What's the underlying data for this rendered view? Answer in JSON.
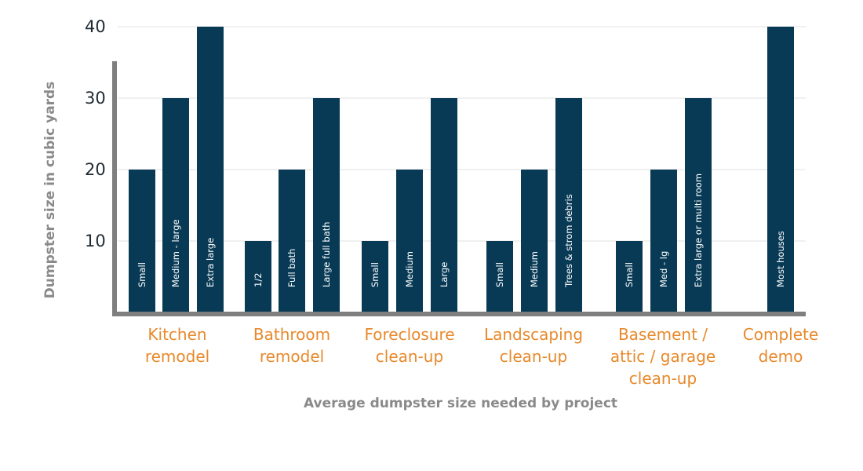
{
  "chart_data": {
    "type": "bar",
    "title": "",
    "xlabel": "Average dumpster size needed by project",
    "ylabel": "Dumpster size in cubic yards",
    "yticks": [
      10,
      20,
      30,
      40
    ],
    "ylim": [
      0,
      45
    ],
    "grid": true,
    "colors": {
      "bar": "#083a56",
      "axis": "#7f7f7f",
      "grid": "#e2e2e2",
      "category": "#e8892b"
    },
    "groups": [
      {
        "category": [
          "Kitchen",
          "remodel"
        ],
        "bars": [
          {
            "label": "Small",
            "value": 20
          },
          {
            "label": "Medium - large",
            "value": 30
          },
          {
            "label": "Extra large",
            "value": 40
          }
        ]
      },
      {
        "category": [
          "Bathroom",
          "remodel"
        ],
        "bars": [
          {
            "label": "1/2",
            "value": 10
          },
          {
            "label": "Full bath",
            "value": 20
          },
          {
            "label": "Large full bath",
            "value": 30
          }
        ]
      },
      {
        "category": [
          "Foreclosure",
          "clean-up"
        ],
        "bars": [
          {
            "label": "Small",
            "value": 10
          },
          {
            "label": "Medium",
            "value": 20
          },
          {
            "label": "Large",
            "value": 30
          }
        ]
      },
      {
        "category": [
          "Landscaping",
          "clean-up"
        ],
        "bars": [
          {
            "label": "Small",
            "value": 10
          },
          {
            "label": "Medium",
            "value": 20
          },
          {
            "label": "Trees & strom debris",
            "value": 30
          }
        ]
      },
      {
        "category": [
          "Basement /",
          "attic / garage",
          "clean-up"
        ],
        "bars": [
          {
            "label": "Small",
            "value": 10
          },
          {
            "label": "Med - lg",
            "value": 20
          },
          {
            "label": "Extra large or multi room",
            "value": 30
          }
        ]
      },
      {
        "category": [
          "Complete",
          "demo"
        ],
        "bars": [
          {
            "label": "Most houses",
            "value": 40
          }
        ]
      }
    ]
  }
}
